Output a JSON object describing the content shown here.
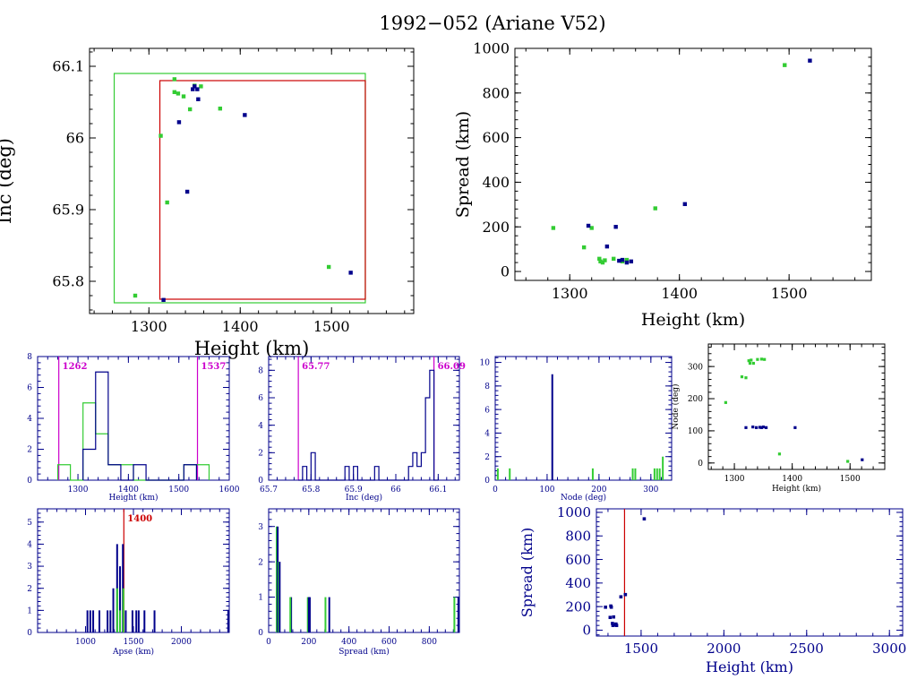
{
  "title": "1992−052 (Ariane V52)",
  "colors": {
    "green": "#33cc33",
    "blue": "#00008b",
    "red": "#cc0000",
    "magenta": "#cc00cc",
    "axis": "#000000",
    "navy": "#00008b"
  },
  "chart_data": [
    {
      "id": "inc-height",
      "type": "scatter",
      "xlabel": "Height (km)",
      "ylabel": "Inc (deg)",
      "xlim": [
        1235,
        1590
      ],
      "ylim": [
        65.755,
        66.125
      ],
      "xticks": [
        1300,
        1400,
        1500
      ],
      "yticks": [
        65.8,
        65.9,
        66,
        66.1
      ],
      "ytick_labels": [
        "65.8",
        "65.9",
        "66",
        "66.1"
      ],
      "boxes": [
        {
          "color": "green",
          "x": [
            1262,
            1537
          ],
          "y": [
            65.77,
            66.09
          ]
        },
        {
          "color": "red",
          "x": [
            1312,
            1537
          ],
          "y": [
            65.775,
            66.08
          ]
        }
      ],
      "series": [
        {
          "color": "green",
          "points": [
            [
              1285,
              65.78
            ],
            [
              1313,
              66.003
            ],
            [
              1320,
              65.91
            ],
            [
              1328,
              66.082
            ],
            [
              1328,
              66.064
            ],
            [
              1332,
              66.062
            ],
            [
              1338,
              66.058
            ],
            [
              1345,
              66.04
            ],
            [
              1350,
              66.073
            ],
            [
              1357,
              66.072
            ],
            [
              1378,
              66.041
            ],
            [
              1497,
              65.82
            ]
          ]
        },
        {
          "color": "blue",
          "points": [
            [
              1316,
              65.774
            ],
            [
              1333,
              66.022
            ],
            [
              1342,
              65.925
            ],
            [
              1348,
              66.068
            ],
            [
              1350,
              66.072
            ],
            [
              1353,
              66.068
            ],
            [
              1354,
              66.054
            ],
            [
              1405,
              66.032
            ],
            [
              1521,
              65.812
            ]
          ]
        }
      ]
    },
    {
      "id": "spread-height",
      "type": "scatter",
      "xlabel": "Height (km)",
      "ylabel": "Spread (km)",
      "xlim": [
        1250,
        1575
      ],
      "ylim": [
        -40,
        1000
      ],
      "xticks": [
        1300,
        1400,
        1500
      ],
      "yticks": [
        0,
        200,
        400,
        600,
        800,
        1000
      ],
      "ytick_labels": [
        "0",
        "200",
        "400",
        "600",
        "800",
        "1000"
      ],
      "series": [
        {
          "color": "green",
          "points": [
            [
              1285,
              195
            ],
            [
              1313,
              108
            ],
            [
              1320,
              195
            ],
            [
              1327,
              57
            ],
            [
              1328,
              45
            ],
            [
              1330,
              40
            ],
            [
              1332,
              50
            ],
            [
              1340,
              57
            ],
            [
              1348,
              45
            ],
            [
              1352,
              52
            ],
            [
              1378,
              283
            ],
            [
              1496,
              925
            ]
          ]
        },
        {
          "color": "blue",
          "points": [
            [
              1317,
              205
            ],
            [
              1334,
              112
            ],
            [
              1342,
              200
            ],
            [
              1345,
              48
            ],
            [
              1348,
              52
            ],
            [
              1352,
              40
            ],
            [
              1356,
              45
            ],
            [
              1405,
              302
            ],
            [
              1519,
              945
            ]
          ]
        }
      ]
    },
    {
      "id": "hist-height",
      "type": "histogram",
      "xlabel": "Height (km)",
      "xlim": [
        1220,
        1600
      ],
      "ylim": [
        0,
        8
      ],
      "xticks": [
        1300,
        1400,
        1500,
        1600
      ],
      "yticks": [
        0,
        2,
        4,
        6,
        8
      ],
      "ytick_labels": [
        "0",
        "2",
        "4",
        "6",
        "8"
      ],
      "vlines": [
        {
          "x": 1262,
          "color": "magenta",
          "label": "1262"
        },
        {
          "x": 1537,
          "color": "magenta",
          "label": "1537"
        }
      ],
      "series": [
        {
          "color": "green",
          "start": 1260,
          "width": 25,
          "counts": [
            1,
            0,
            5,
            3,
            1,
            1,
            0,
            0,
            0,
            0,
            1,
            1
          ]
        },
        {
          "color": "blue",
          "start": 1310,
          "width": 25,
          "counts": [
            2,
            7,
            1,
            0,
            1,
            0,
            0,
            0,
            1
          ]
        }
      ]
    },
    {
      "id": "hist-inc",
      "type": "histogram",
      "xlabel": "Inc (deg)",
      "xlim": [
        65.7,
        66.15
      ],
      "ylim": [
        0,
        9
      ],
      "xticks": [
        65.7,
        65.8,
        65.9,
        66,
        66.1
      ],
      "yticks": [
        0,
        2,
        4,
        6,
        8
      ],
      "xtick_labels": [
        "65.7",
        "65.8",
        "65.9",
        "66",
        "66.1"
      ],
      "ytick_labels": [
        "0",
        "2",
        "4",
        "6",
        "8"
      ],
      "vlines": [
        {
          "x": 65.77,
          "color": "magenta",
          "label": "65.77"
        },
        {
          "x": 66.09,
          "color": "magenta",
          "label": "66.09"
        }
      ],
      "series": [
        {
          "color": "blue",
          "start": 65.77,
          "width": 0.01,
          "counts": [
            0,
            1,
            0,
            2,
            0,
            0,
            0,
            0,
            0,
            0,
            0,
            1,
            0,
            1,
            0,
            0,
            0,
            0,
            1,
            0,
            0,
            0,
            0,
            0,
            0,
            0,
            1,
            2,
            1,
            2,
            6,
            8,
            0
          ]
        }
      ]
    },
    {
      "id": "hist-node",
      "type": "histogram",
      "xlabel": "Node (deg)",
      "xlim": [
        0,
        340
      ],
      "ylim": [
        0,
        10.5
      ],
      "xticks": [
        0,
        100,
        200,
        300
      ],
      "yticks": [
        0,
        2,
        4,
        6,
        8,
        10
      ],
      "ytick_labels": [
        "0",
        "2",
        "4",
        "6",
        "8",
        "10"
      ],
      "bars": [
        {
          "color": "green",
          "x": 5,
          "value": 1
        },
        {
          "color": "green",
          "x": 28,
          "value": 1
        },
        {
          "color": "blue",
          "x": 110,
          "value": 9
        },
        {
          "color": "green",
          "x": 188,
          "value": 1
        },
        {
          "color": "green",
          "x": 265,
          "value": 1
        },
        {
          "color": "green",
          "x": 270,
          "value": 1
        },
        {
          "color": "green",
          "x": 307,
          "value": 1
        },
        {
          "color": "green",
          "x": 312,
          "value": 1
        },
        {
          "color": "green",
          "x": 317,
          "value": 1
        },
        {
          "color": "green",
          "x": 323,
          "value": 2
        }
      ]
    },
    {
      "id": "node-height",
      "type": "scatter",
      "xlabel": "Height (km)",
      "ylabel": "Node (deg)",
      "xlim": [
        1255,
        1560
      ],
      "ylim": [
        -20,
        370
      ],
      "xticks": [
        1300,
        1400,
        1500
      ],
      "yticks": [
        0,
        100,
        200,
        300
      ],
      "ytick_labels": [
        "0",
        "100",
        "200",
        "300"
      ],
      "series": [
        {
          "color": "green",
          "points": [
            [
              1285,
              188
            ],
            [
              1313,
              268
            ],
            [
              1320,
              265
            ],
            [
              1325,
              318
            ],
            [
              1327,
              310
            ],
            [
              1329,
              320
            ],
            [
              1333,
              310
            ],
            [
              1340,
              322
            ],
            [
              1347,
              323
            ],
            [
              1352,
              322
            ],
            [
              1378,
              28
            ],
            [
              1496,
              5
            ]
          ]
        },
        {
          "color": "blue",
          "points": [
            [
              1320,
              110
            ],
            [
              1332,
              112
            ],
            [
              1338,
              110
            ],
            [
              1344,
              111
            ],
            [
              1347,
              110
            ],
            [
              1350,
              112
            ],
            [
              1355,
              110
            ],
            [
              1405,
              110
            ],
            [
              1521,
              10
            ]
          ]
        }
      ]
    },
    {
      "id": "hist-apse",
      "type": "histogram",
      "xlabel": "Apse (km)",
      "xlim": [
        500,
        2500
      ],
      "ylim": [
        0,
        5.6
      ],
      "xticks": [
        1000,
        1500,
        2000
      ],
      "yticks": [
        0,
        1,
        2,
        3,
        4,
        5
      ],
      "ytick_labels": [
        "0",
        "1",
        "2",
        "3",
        "4",
        "5"
      ],
      "vlines": [
        {
          "x": 1400,
          "color": "red",
          "label": "1400"
        }
      ],
      "bars": [
        {
          "color": "blue",
          "x": 1020,
          "value": 1
        },
        {
          "color": "blue",
          "x": 1050,
          "value": 1
        },
        {
          "color": "blue",
          "x": 1080,
          "value": 1
        },
        {
          "color": "blue",
          "x": 1145,
          "value": 1
        },
        {
          "color": "blue",
          "x": 1230,
          "value": 1
        },
        {
          "color": "blue",
          "x": 1260,
          "value": 1
        },
        {
          "color": "blue",
          "x": 1290,
          "value": 2
        },
        {
          "color": "blue",
          "x": 1330,
          "value": 4
        },
        {
          "color": "green",
          "x": 1330,
          "value": 2
        },
        {
          "color": "blue",
          "x": 1360,
          "value": 3
        },
        {
          "color": "green",
          "x": 1360,
          "value": 1
        },
        {
          "color": "blue",
          "x": 1390,
          "value": 4
        },
        {
          "color": "green",
          "x": 1395,
          "value": 2
        },
        {
          "color": "blue",
          "x": 1420,
          "value": 1
        },
        {
          "color": "blue",
          "x": 1490,
          "value": 1
        },
        {
          "color": "blue",
          "x": 1530,
          "value": 1
        },
        {
          "color": "blue",
          "x": 1555,
          "value": 1
        },
        {
          "color": "blue",
          "x": 1615,
          "value": 1
        },
        {
          "color": "blue",
          "x": 1720,
          "value": 1
        },
        {
          "color": "blue",
          "x": 2490,
          "value": 1
        }
      ]
    },
    {
      "id": "hist-spread",
      "type": "histogram",
      "xlabel": "Spread (km)",
      "xlim": [
        0,
        950
      ],
      "ylim": [
        0,
        3.5
      ],
      "xticks": [
        0,
        200,
        400,
        600,
        800
      ],
      "yticks": [
        0,
        1,
        2,
        3
      ],
      "ytick_labels": [
        "0",
        "1",
        "2",
        "3"
      ],
      "bars": [
        {
          "color": "green",
          "x": 40,
          "value": 3
        },
        {
          "color": "blue",
          "x": 45,
          "value": 3
        },
        {
          "color": "green",
          "x": 50,
          "value": 2
        },
        {
          "color": "blue",
          "x": 55,
          "value": 2
        },
        {
          "color": "blue",
          "x": 112,
          "value": 1
        },
        {
          "color": "green",
          "x": 108,
          "value": 1
        },
        {
          "color": "green",
          "x": 195,
          "value": 1
        },
        {
          "color": "blue",
          "x": 200,
          "value": 1
        },
        {
          "color": "blue",
          "x": 205,
          "value": 1
        },
        {
          "color": "green",
          "x": 283,
          "value": 1
        },
        {
          "color": "blue",
          "x": 302,
          "value": 1
        },
        {
          "color": "green",
          "x": 925,
          "value": 1
        },
        {
          "color": "blue",
          "x": 945,
          "value": 1
        }
      ]
    },
    {
      "id": "spread-height-wide",
      "type": "scatter",
      "xlabel": "Height (km)",
      "ylabel": "Spread (km)",
      "xlim": [
        1230,
        3080
      ],
      "ylim": [
        -50,
        1030
      ],
      "xticks": [
        1500,
        2000,
        2500,
        3000
      ],
      "yticks": [
        0,
        200,
        400,
        600,
        800,
        1000
      ],
      "ytick_labels": [
        "0",
        "200",
        "400",
        "600",
        "800",
        "1000"
      ],
      "vlines": [
        {
          "x": 1400,
          "color": "red",
          "label": ""
        }
      ],
      "series": [
        {
          "color": "blue",
          "points": [
            [
              1285,
              195
            ],
            [
              1313,
              108
            ],
            [
              1317,
              205
            ],
            [
              1320,
              195
            ],
            [
              1327,
              57
            ],
            [
              1330,
              40
            ],
            [
              1334,
              112
            ],
            [
              1342,
              45
            ],
            [
              1348,
              52
            ],
            [
              1352,
              40
            ],
            [
              1378,
              283
            ],
            [
              1405,
              302
            ],
            [
              1519,
              945
            ]
          ]
        }
      ]
    }
  ]
}
